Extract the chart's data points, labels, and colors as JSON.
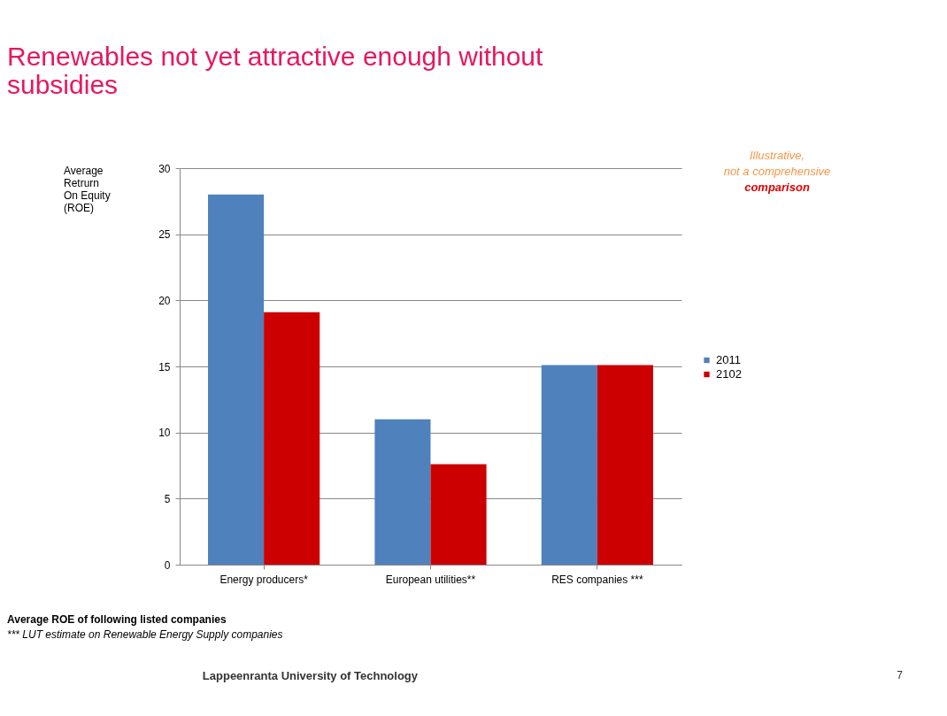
{
  "chart_data": {
    "type": "bar",
    "title": "Renewables not yet attractive enough without\nsubsidies",
    "ylabel": "Average\nRetrurn\nOn Equity\n(ROE)",
    "categories": [
      "Energy producers*",
      "European utilities**",
      "RES companies ***"
    ],
    "series": [
      {
        "name": "2011",
        "color": "#4f81bd",
        "values": [
          28,
          11,
          15.1
        ]
      },
      {
        "name": "2102",
        "color": "#cc0000",
        "values": [
          19.1,
          7.6,
          15.1
        ]
      }
    ],
    "ylim": [
      0,
      30
    ],
    "yticks": [
      0,
      5,
      10,
      15,
      20,
      25,
      30
    ],
    "grid": "y",
    "legend": "right",
    "annotations": [
      "Illustrative,",
      "not a comprehensive",
      "comparison",
      "Average ROE of following listed companies",
      "*** LUT estimate on Renewable Energy Supply companies",
      "Lappeenranta University of Technology",
      "7"
    ]
  }
}
